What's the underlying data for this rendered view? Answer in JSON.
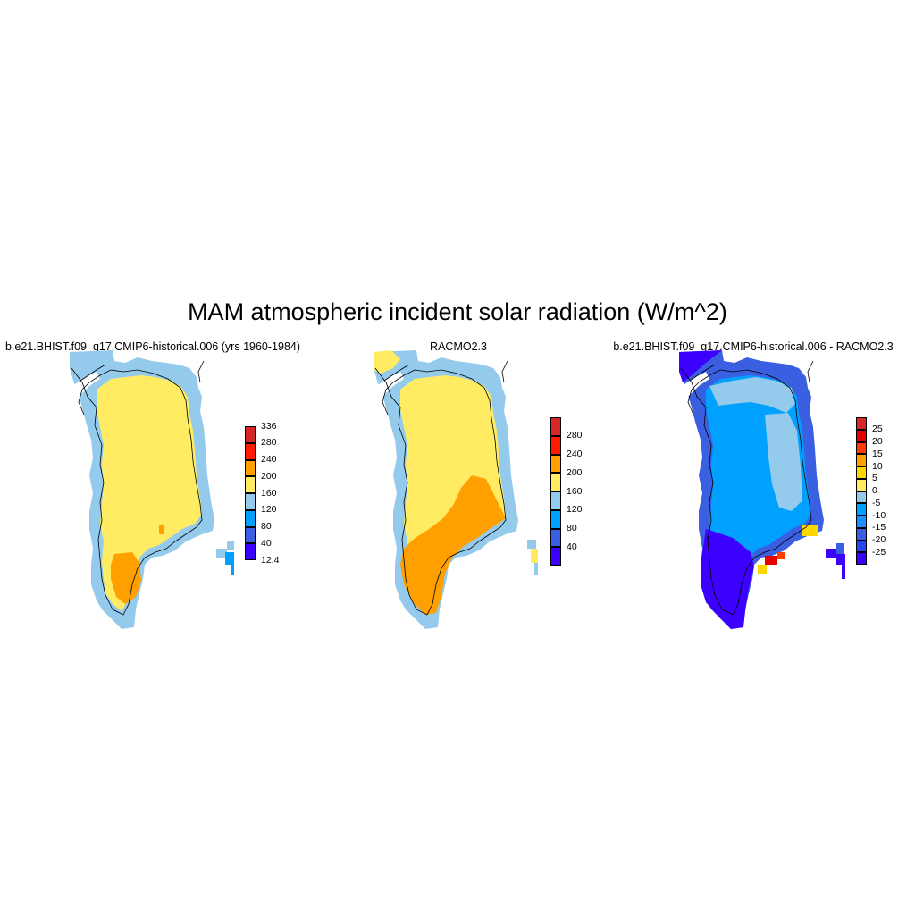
{
  "title": "MAM atmospheric incident solar radiation (W/m^2)",
  "panels": [
    {
      "title": "b.e21.BHIST.f09_g17.CMIP6-historical.006 (yrs 1960-1984)",
      "colorbar": {
        "labels": [
          "336",
          "280",
          "240",
          "200",
          "160",
          "120",
          "80",
          "40",
          "12.4"
        ],
        "colors": [
          "#d62728",
          "#ff1a00",
          "#ff9f00",
          "#ffec63",
          "#94cbec",
          "#00a0ff",
          "#3a5fe0",
          "#3c00ff"
        ],
        "end_labels": true
      },
      "field": "model",
      "legend": {
        "field_colors": {
          "mid": "#ffec63",
          "edge": "#94cbec",
          "low": "#ff9f00",
          "vlow": "#00a0ff"
        }
      }
    },
    {
      "title": "RACMO2.3",
      "colorbar": {
        "labels": [
          "280",
          "240",
          "200",
          "160",
          "120",
          "80",
          "40"
        ],
        "colors": [
          "#d62728",
          "#ff1a00",
          "#ff9f00",
          "#ffec63",
          "#94cbec",
          "#00a0ff",
          "#3a5fe0",
          "#3c00ff"
        ],
        "end_labels": false
      },
      "field": "obs"
    },
    {
      "title": "b.e21.BHIST.f09_g17.CMIP6-historical.006 - RACMO2.3",
      "colorbar": {
        "labels": [
          "25",
          "20",
          "15",
          "10",
          "5",
          "0",
          "-5",
          "-10",
          "-15",
          "-20",
          "-25"
        ],
        "colors": [
          "#d62728",
          "#e60000",
          "#ff3c00",
          "#ff9f00",
          "#ffd700",
          "#ffec63",
          "#94cbec",
          "#00a0ff",
          "#1e90ff",
          "#3a5fe0",
          "#2646f0",
          "#3c00ff"
        ],
        "end_labels": false
      },
      "field": "diff"
    }
  ]
}
